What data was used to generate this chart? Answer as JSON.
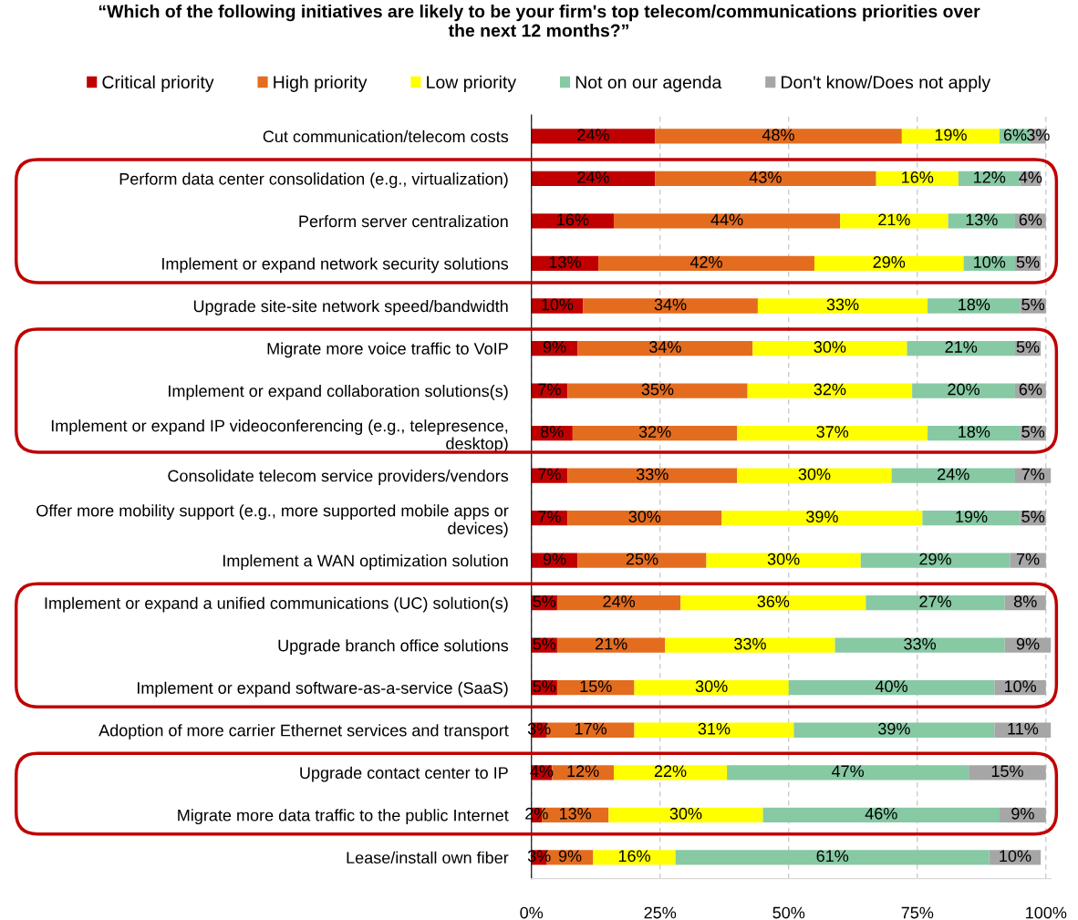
{
  "chart_data": {
    "type": "bar",
    "orientation": "horizontal",
    "stacked": true,
    "title": "“Which of the following initiatives are likely to be your firm's top telecom/communications priorities over\nthe next 12 months?”",
    "categories": [
      "Cut communication/telecom costs",
      "Perform data center consolidation (e.g., virtualization)",
      "Perform server centralization",
      "Implement or expand network security solutions",
      "Upgrade site-site network speed/bandwidth",
      "Migrate more voice traffic to VoIP",
      "Implement or expand collaboration solutions(s)",
      "Implement or expand IP videoconferencing (e.g., telepresence,\ndesktop)",
      "Consolidate telecom service providers/vendors",
      "Offer more mobility support (e.g., more supported mobile apps or\ndevices)",
      "Implement a WAN optimization solution",
      "Implement or expand a unified communications (UC) solution(s)",
      "Upgrade branch office solutions",
      "Implement or expand software-as-a-service (SaaS)",
      "Adoption of more carrier Ethernet services and transport",
      "Upgrade contact center to IP",
      "Migrate more data traffic to the public Internet",
      "Lease/install own fiber"
    ],
    "series": [
      {
        "name": "Critical priority",
        "color": "#c00000",
        "values": [
          24,
          24,
          16,
          13,
          10,
          9,
          7,
          8,
          7,
          7,
          9,
          5,
          5,
          5,
          3,
          4,
          2,
          3
        ],
        "value_labels": [
          "24%",
          "24%",
          "16%",
          "13%",
          "10%",
          "9%",
          "7%",
          "8%",
          "7%",
          "7%",
          "9%",
          "5%",
          "5%",
          "5%",
          "3%",
          "4%",
          "2%",
          "3%"
        ]
      },
      {
        "name": "High priority",
        "color": "#e46c1f",
        "values": [
          48,
          43,
          44,
          42,
          34,
          34,
          35,
          32,
          33,
          30,
          25,
          24,
          21,
          15,
          17,
          12,
          13,
          9
        ],
        "value_labels": [
          "48%",
          "43%",
          "44%",
          "42%",
          "34%",
          "34%",
          "35%",
          "32%",
          "33%",
          "30%",
          "25%",
          "24%",
          "21%",
          "15%",
          "17%",
          "12%",
          "13%",
          "9%"
        ]
      },
      {
        "name": "Low priority",
        "color": "#ffff00",
        "values": [
          19,
          16,
          21,
          29,
          33,
          30,
          32,
          37,
          30,
          39,
          30,
          36,
          33,
          30,
          31,
          22,
          30,
          16
        ],
        "value_labels": [
          "19%",
          "16%",
          "21%",
          "29%",
          "33%",
          "30%",
          "32%",
          "37%",
          "30%",
          "39%",
          "30%",
          "36%",
          "33%",
          "30%",
          "31%",
          "22%",
          "30%",
          "16%"
        ]
      },
      {
        "name": "Not on our agenda",
        "color": "#86c9a3",
        "values": [
          6,
          12,
          13,
          10,
          18,
          21,
          20,
          18,
          24,
          19,
          29,
          27,
          33,
          40,
          39,
          47,
          46,
          61
        ],
        "value_labels": [
          "6%",
          "12%",
          "13%",
          "10%",
          "18%",
          "21%",
          "20%",
          "18%",
          "24%",
          "19%",
          "29%",
          "27%",
          "33%",
          "40%",
          "39%",
          "47%",
          "46%",
          "61%"
        ]
      },
      {
        "name": "Don't know/Does not apply",
        "color": "#a6a6a6",
        "values": [
          3,
          4,
          6,
          5,
          5,
          5,
          6,
          5,
          7,
          5,
          7,
          8,
          9,
          10,
          11,
          15,
          9,
          10
        ],
        "value_labels": [
          "3%",
          "4%",
          "6%",
          "5%",
          "5%",
          "5%",
          "6%",
          "5%",
          "7%",
          "5%",
          "7%",
          "8%",
          "9%",
          "10%",
          "11%",
          "15%",
          "9%",
          "10%"
        ]
      }
    ],
    "xlim": [
      0,
      101
    ],
    "xticks": [
      {
        "value": 0,
        "label": "0%"
      },
      {
        "value": 25,
        "label": "25%"
      },
      {
        "value": 50,
        "label": "50%"
      },
      {
        "value": 75,
        "label": "75%"
      },
      {
        "value": 100,
        "label": "100%"
      }
    ],
    "grid": "x",
    "legend": "top"
  }
}
